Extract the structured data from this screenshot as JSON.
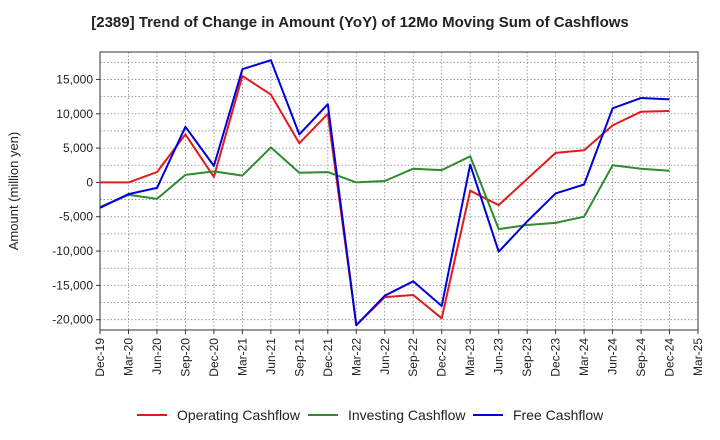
{
  "chart_data": {
    "type": "line",
    "title": "[2389]  Trend of Change in Amount (YoY) of 12Mo Moving Sum of Cashflows",
    "xlabel": "",
    "ylabel": "Amount (million yen)",
    "ylim": [
      -21500,
      19000
    ],
    "yticks": [
      -20000,
      -15000,
      -10000,
      -5000,
      0,
      5000,
      10000,
      15000
    ],
    "ytick_labels": [
      "-20,000",
      "-15,000",
      "-10,000",
      "-5,000",
      "0",
      "5,000",
      "10,000",
      "15,000"
    ],
    "grid": true,
    "legend_position": "bottom",
    "categories": [
      "Dec-19",
      "Mar-20",
      "Jun-20",
      "Sep-20",
      "Dec-20",
      "Mar-21",
      "Jun-21",
      "Sep-21",
      "Dec-21",
      "Mar-22",
      "Jun-22",
      "Sep-22",
      "Dec-22",
      "Mar-23",
      "Jun-23",
      "Sep-23",
      "Dec-23",
      "Mar-24",
      "Jun-24",
      "Sep-24",
      "Dec-24",
      "Mar-25"
    ],
    "series": [
      {
        "name": "Operating Cashflow",
        "color": "#e31a1c",
        "values": [
          0,
          0,
          1500,
          7000,
          800,
          15500,
          12800,
          5700,
          10000,
          -20800,
          -16700,
          -16400,
          -19800,
          -1200,
          -3300,
          500,
          4300,
          4700,
          8300,
          10300,
          10400,
          null
        ]
      },
      {
        "name": "Investing Cashflow",
        "color": "#2e8b2e",
        "values": [
          -3600,
          -1800,
          -2400,
          1100,
          1600,
          1000,
          5100,
          1400,
          1500,
          0,
          200,
          2000,
          1800,
          3800,
          -6800,
          -6200,
          -5900,
          -5000,
          2500,
          2000,
          1700,
          null
        ]
      },
      {
        "name": "Free Cashflow",
        "color": "#0000dd",
        "values": [
          -3700,
          -1700,
          -800,
          8100,
          2400,
          16500,
          17800,
          7000,
          11400,
          -20800,
          -16500,
          -14400,
          -18000,
          2600,
          -10100,
          -5700,
          -1600,
          -300,
          10800,
          12300,
          12100,
          null
        ]
      }
    ]
  }
}
